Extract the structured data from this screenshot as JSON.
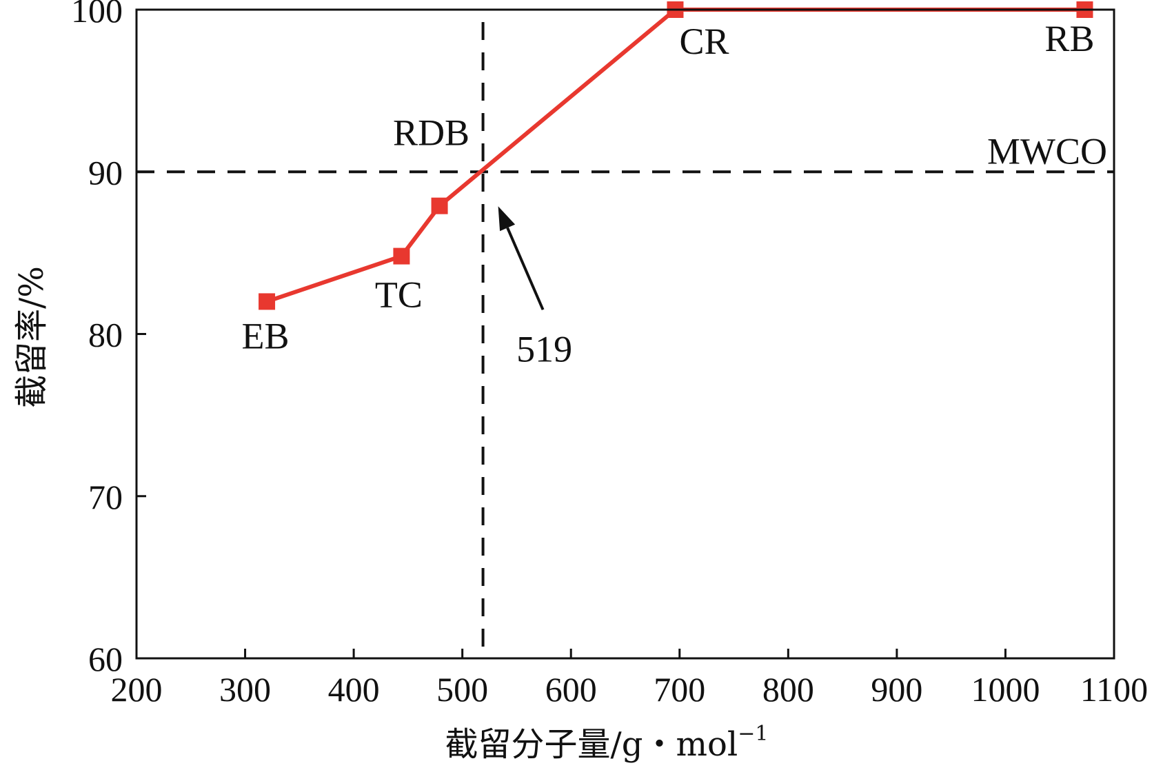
{
  "chart_data": {
    "type": "line",
    "xlabel": "截留分子量/g・mol",
    "xlabel_sup": "−1",
    "ylabel": "截留率/%",
    "xlim": [
      200,
      1100
    ],
    "ylim": [
      60,
      100
    ],
    "x_ticks": [
      200,
      300,
      400,
      500,
      600,
      700,
      800,
      900,
      1000,
      1100
    ],
    "y_ticks": [
      60,
      70,
      80,
      90,
      100
    ],
    "grid": false,
    "line_color": "#e8382f",
    "points": [
      {
        "label": "EB",
        "x": 320,
        "y": 82.0
      },
      {
        "label": "TC",
        "x": 444,
        "y": 84.8
      },
      {
        "label": "RDB",
        "x": 479,
        "y": 87.9
      },
      {
        "label": "CR",
        "x": 696,
        "y": 100
      },
      {
        "label": "RB",
        "x": 1073,
        "y": 100
      }
    ],
    "reference_lines": {
      "horizontal": {
        "y": 90,
        "label": "MWCO"
      },
      "vertical": {
        "x": 519
      }
    },
    "annotation": {
      "text": "519",
      "arrow_to": {
        "x": 519,
        "y": 90
      }
    }
  }
}
